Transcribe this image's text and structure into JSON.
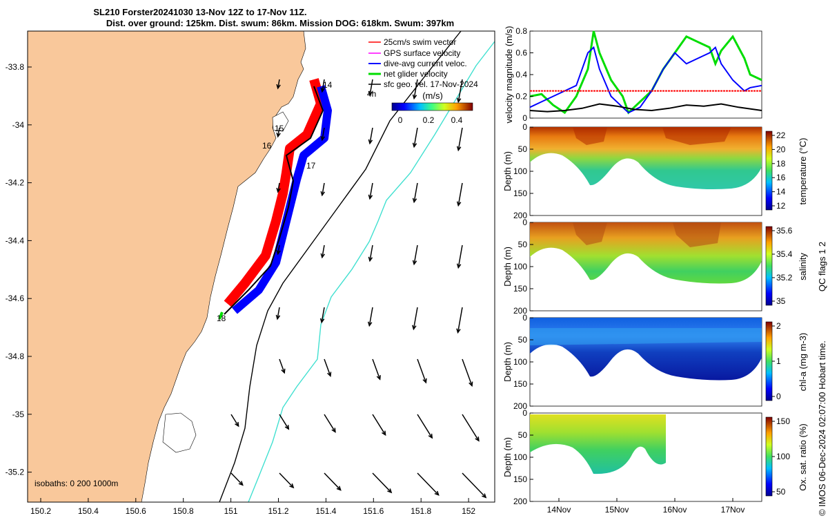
{
  "header": {
    "title_line1": "SL210 Forster20241030 13-Nov 12Z to 17-Nov 11Z.",
    "title_line2": "Dist. over ground: 125km. Dist. swum: 86km. Mission DOG: 618km. Swum: 397km"
  },
  "map": {
    "legend": [
      {
        "label": "25cm/s swim vector",
        "color": "#ff0000"
      },
      {
        "label": "GPS surface velocity",
        "color": "#ff00ff"
      },
      {
        "label": "dive-avg current veloc.",
        "color": "#0000ff"
      },
      {
        "label": "net glider velocity",
        "color": "#00dd00"
      },
      {
        "label": "sfc geo. vel. 17-Nov-2024",
        "color": "#000000"
      }
    ],
    "legend_extra": "4h",
    "colorbar_title": "(m/s)",
    "colorbar_ticks": [
      "0",
      "0.2",
      "0.4"
    ],
    "lon_ticks": [
      "150.2",
      "150.4",
      "150.6",
      "150.8",
      "151",
      "151.2",
      "151.4",
      "151.6",
      "151.8",
      "152"
    ],
    "lat_ticks": [
      "-33.8",
      "-34",
      "-34.2",
      "-34.4",
      "-34.6",
      "-34.8",
      "-35",
      "-35.2"
    ],
    "isobaths_label": "isobaths: 0   200  1000m",
    "track_labels": [
      "14",
      "15",
      "16",
      "17",
      "18"
    ],
    "colors": {
      "land": "#f9c89b",
      "isobath_200": "#000000",
      "isobath_1000": "#40e0d0"
    }
  },
  "chart_data": [
    {
      "type": "line",
      "ylabel": "velocity magnitude (m/s)",
      "ylim": [
        0,
        0.8
      ],
      "yticks": [
        "0",
        "0.2",
        "0.4",
        "0.6",
        "0.8"
      ],
      "x_range_days": [
        13.5,
        17.5
      ],
      "series": [
        {
          "color": "#00dd00",
          "x": [
            13.5,
            13.7,
            13.9,
            14.1,
            14.3,
            14.5,
            14.6,
            14.7,
            14.9,
            15.1,
            15.2,
            15.4,
            15.6,
            15.8,
            16.0,
            16.2,
            16.4,
            16.6,
            16.7,
            16.8,
            17.0,
            17.2,
            17.3,
            17.5
          ],
          "y": [
            0.2,
            0.22,
            0.12,
            0.05,
            0.2,
            0.45,
            0.8,
            0.6,
            0.35,
            0.2,
            0.05,
            0.15,
            0.25,
            0.45,
            0.6,
            0.75,
            0.7,
            0.65,
            0.5,
            0.62,
            0.75,
            0.55,
            0.4,
            0.35
          ]
        },
        {
          "color": "#0000ff",
          "x": [
            13.5,
            13.7,
            13.9,
            14.1,
            14.3,
            14.5,
            14.6,
            14.7,
            14.9,
            15.1,
            15.2,
            15.4,
            15.6,
            15.8,
            16.0,
            16.2,
            16.4,
            16.6,
            16.7,
            16.8,
            17.0,
            17.2,
            17.3,
            17.5
          ],
          "y": [
            0.1,
            0.15,
            0.2,
            0.25,
            0.3,
            0.6,
            0.65,
            0.45,
            0.2,
            0.1,
            0.05,
            0.1,
            0.25,
            0.45,
            0.6,
            0.5,
            0.55,
            0.6,
            0.65,
            0.5,
            0.35,
            0.25,
            0.28,
            0.3
          ]
        },
        {
          "color": "#ff0000",
          "x": [
            13.5,
            17.5
          ],
          "y": [
            0.25,
            0.25
          ]
        },
        {
          "color": "#000000",
          "x": [
            13.5,
            13.8,
            14.1,
            14.4,
            14.7,
            15.0,
            15.3,
            15.6,
            15.9,
            16.2,
            16.5,
            16.8,
            17.1,
            17.5
          ],
          "y": [
            0.07,
            0.06,
            0.07,
            0.09,
            0.13,
            0.11,
            0.08,
            0.07,
            0.09,
            0.12,
            0.11,
            0.13,
            0.1,
            0.07
          ]
        }
      ]
    },
    {
      "type": "heatmap",
      "ylabel": "Depth (m)",
      "cbar_label": "temperature (°C)",
      "cbar_ticks": [
        "12",
        "14",
        "16",
        "18",
        "20",
        "22"
      ],
      "yticks": [
        "0",
        "50",
        "100",
        "150",
        "200"
      ]
    },
    {
      "type": "heatmap",
      "ylabel": "Depth (m)",
      "cbar_label": "salinity",
      "cbar_ticks": [
        "35",
        "35.2",
        "35.4",
        "35.6"
      ],
      "yticks": [
        "0",
        "50",
        "100",
        "150",
        "200"
      ]
    },
    {
      "type": "heatmap",
      "ylabel": "Depth (m)",
      "cbar_label": "chl-a (mg m-3)",
      "cbar_ticks": [
        "0",
        "1",
        "2"
      ],
      "yticks": [
        "0",
        "50",
        "100",
        "150",
        "200"
      ]
    },
    {
      "type": "heatmap",
      "ylabel": "Depth (m)",
      "cbar_label": "Ox. sat. ratio (%)",
      "cbar_ticks": [
        "50",
        "100",
        "150"
      ],
      "yticks": [
        "0",
        "50",
        "100",
        "150",
        "200"
      ]
    }
  ],
  "time_ticks": [
    "14Nov",
    "15Nov",
    "16Nov",
    "17Nov"
  ],
  "side_label": "QC flags 1  2",
  "footer": "© IMOS 06-Dec-2024 02:07:00 Hobart time."
}
